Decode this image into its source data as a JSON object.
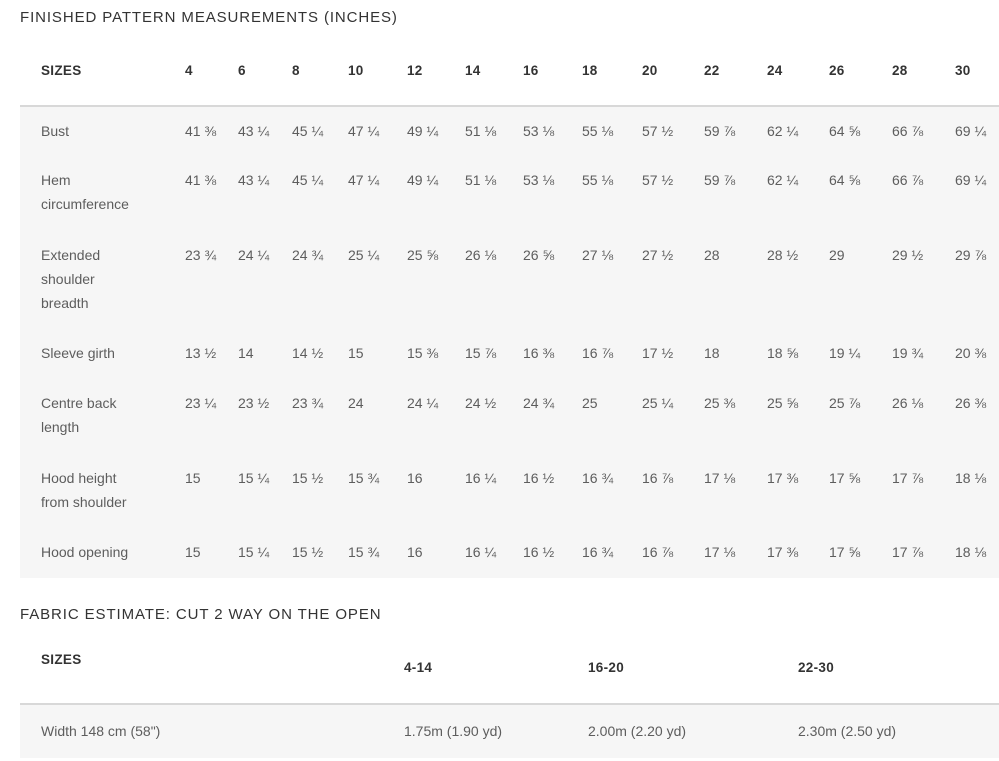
{
  "measurements": {
    "title": "FINISHED PATTERN MEASUREMENTS (INCHES)",
    "header_label": "SIZES",
    "sizes": [
      "4",
      "6",
      "8",
      "10",
      "12",
      "14",
      "16",
      "18",
      "20",
      "22",
      "24",
      "26",
      "28",
      "30"
    ],
    "rows": [
      {
        "label": "Bust",
        "values": [
          "41 ⅜",
          "43 ¼",
          "45 ¼",
          "47 ¼",
          "49 ¼",
          "51 ⅛",
          "53 ⅛",
          "55 ⅛",
          "57 ½",
          "59 ⅞",
          "62 ¼",
          "64 ⅝",
          "66 ⅞",
          "69 ¼"
        ]
      },
      {
        "label": "Hem circumference",
        "values": [
          "41 ⅜",
          "43 ¼",
          "45 ¼",
          "47 ¼",
          "49 ¼",
          "51 ⅛",
          "53 ⅛",
          "55 ⅛",
          "57 ½",
          "59 ⅞",
          "62 ¼",
          "64 ⅝",
          "66 ⅞",
          "69 ¼"
        ]
      },
      {
        "label": "Extended shoulder breadth",
        "values": [
          "23 ¾",
          "24 ¼",
          "24 ¾",
          "25 ¼",
          "25 ⅝",
          "26 ⅛",
          "26 ⅝",
          "27 ⅛",
          "27 ½",
          "28",
          "28 ½",
          "29",
          "29 ½",
          "29 ⅞"
        ]
      },
      {
        "label": "Sleeve girth",
        "values": [
          "13 ½",
          "14",
          "14 ½",
          "15",
          "15 ⅜",
          "15 ⅞",
          "16 ⅜",
          "16 ⅞",
          "17 ½",
          "18",
          "18 ⅝",
          "19 ¼",
          "19 ¾",
          "20 ⅜"
        ]
      },
      {
        "label": "Centre back length",
        "values": [
          "23 ¼",
          "23 ½",
          "23 ¾",
          "24",
          "24 ¼",
          "24 ½",
          "24 ¾",
          "25",
          "25 ¼",
          "25 ⅜",
          "25 ⅝",
          "25 ⅞",
          "26 ⅛",
          "26 ⅜"
        ]
      },
      {
        "label": "Hood height from shoulder",
        "values": [
          "15",
          "15 ¼",
          "15 ½",
          "15 ¾",
          "16",
          "16 ¼",
          "16 ½",
          "16 ¾",
          "16 ⅞",
          "17 ⅛",
          "17 ⅜",
          "17 ⅝",
          "17 ⅞",
          "18 ⅛"
        ]
      },
      {
        "label": "Hood opening",
        "values": [
          "15",
          "15 ¼",
          "15 ½",
          "15 ¾",
          "16",
          "16 ¼",
          "16 ½",
          "16 ¾",
          "16 ⅞",
          "17 ⅛",
          "17 ⅜",
          "17 ⅝",
          "17 ⅞",
          "18 ⅛"
        ]
      }
    ]
  },
  "fabric": {
    "title": "FABRIC ESTIMATE: CUT 2 WAY ON THE OPEN",
    "header_label": "SIZES",
    "size_ranges": [
      "4-14",
      "16-20",
      "22-30"
    ],
    "rows": [
      {
        "label": "Width 148 cm (58\")",
        "values": [
          "1.75m (1.90 yd)",
          "2.00m (2.20 yd)",
          "2.30m (2.50 yd)"
        ]
      }
    ]
  }
}
